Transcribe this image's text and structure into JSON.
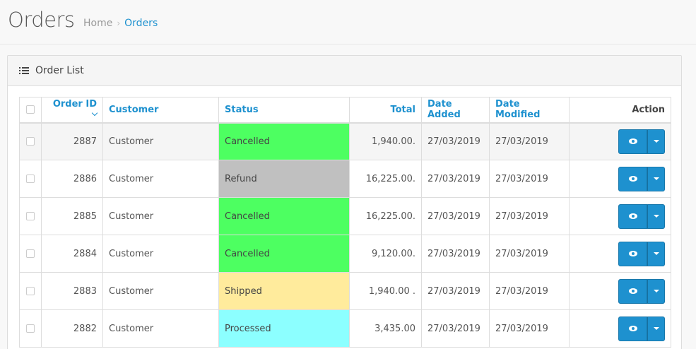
{
  "header": {
    "title": "Orders",
    "breadcrumb": {
      "home": "Home",
      "separator": "›",
      "current": "Orders"
    }
  },
  "panel": {
    "title": "Order List",
    "icon": "list-icon"
  },
  "table": {
    "columns": {
      "order_id": "Order ID",
      "customer": "Customer",
      "status": "Status",
      "total": "Total",
      "date_added": "Date Added",
      "date_modified": "Date Modified",
      "action": "Action"
    },
    "rows": [
      {
        "id": "2887",
        "customer": "Customer",
        "status": "Cancelled",
        "status_color": "#4dff61",
        "total": "1,940.00.",
        "date_added": "27/03/2019",
        "date_modified": "27/03/2019"
      },
      {
        "id": "2886",
        "customer": "Customer",
        "status": "Refund",
        "status_color": "#c0c0c0",
        "total": "16,225.00.",
        "date_added": "27/03/2019",
        "date_modified": "27/03/2019"
      },
      {
        "id": "2885",
        "customer": "Customer",
        "status": "Cancelled",
        "status_color": "#4dff61",
        "total": "16,225.00.",
        "date_added": "27/03/2019",
        "date_modified": "27/03/2019"
      },
      {
        "id": "2884",
        "customer": "Customer",
        "status": "Cancelled",
        "status_color": "#4dff61",
        "total": "9,120.00.",
        "date_added": "27/03/2019",
        "date_modified": "27/03/2019"
      },
      {
        "id": "2883",
        "customer": "Customer",
        "status": "Shipped",
        "status_color": "#ffeb9c",
        "total": "1,940.00 .",
        "date_added": "27/03/2019",
        "date_modified": "27/03/2019"
      },
      {
        "id": "2882",
        "customer": "Customer",
        "status": "Processed",
        "status_color": "#8cffff",
        "total": "3,435.00",
        "date_added": "27/03/2019",
        "date_modified": "27/03/2019"
      }
    ]
  },
  "colors": {
    "accent": "#1e91cf"
  }
}
